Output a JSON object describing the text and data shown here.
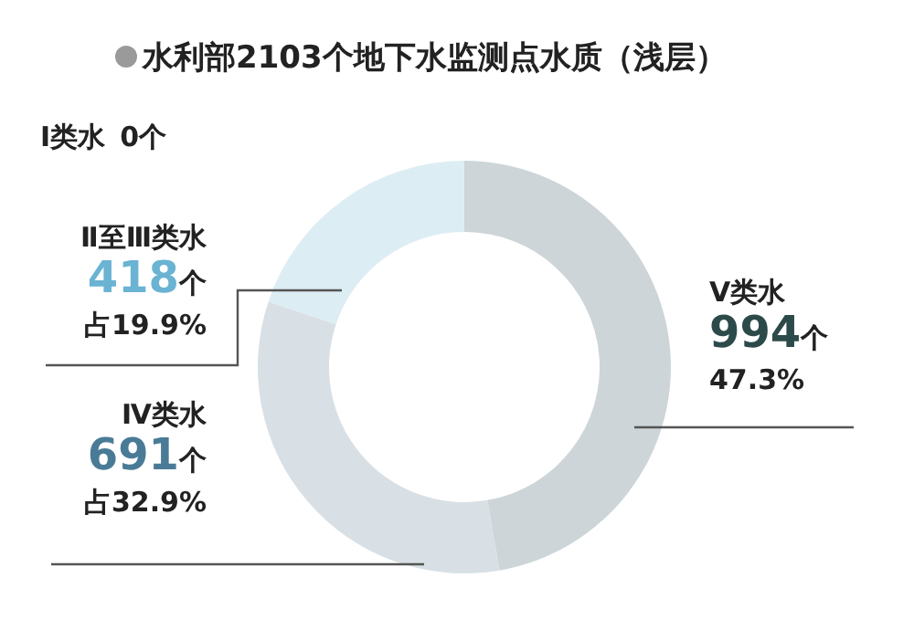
{
  "chart_data": {
    "type": "donut",
    "title": "水利部2103个地下水监测点水质（浅层）",
    "categories": [
      "Ⅰ类水",
      "Ⅱ至Ⅲ类水",
      "Ⅳ类水",
      "Ⅴ类水"
    ],
    "values": [
      0,
      418,
      691,
      994
    ],
    "colors": [
      "#e8f2f7",
      "#ddedf4",
      "#d8e0e5",
      "#cdd5d8"
    ],
    "value_labels": [
      "0个",
      "418个占19.9%",
      "691个占32.9%",
      "994个47.3%"
    ]
  }
}
